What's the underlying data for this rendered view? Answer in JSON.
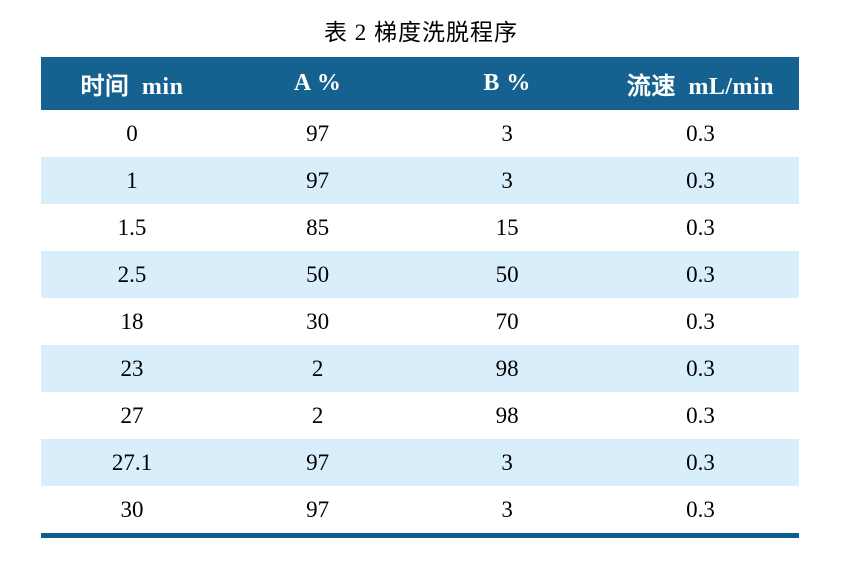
{
  "title": "表 2 梯度洗脱程序",
  "colors": {
    "header_bg": "#15618f",
    "header_text": "#ffffff",
    "row_bg": "#ffffff",
    "row_alt_bg": "#d8eefb",
    "bottom_rule": "#0d5d8d",
    "body_text": "#000000"
  },
  "table": {
    "headers": [
      "时间 min",
      "A %",
      "B %",
      "流速 mL/min"
    ],
    "rows": [
      [
        "0",
        "97",
        "3",
        "0.3"
      ],
      [
        "1",
        "97",
        "3",
        "0.3"
      ],
      [
        "1.5",
        "85",
        "15",
        "0.3"
      ],
      [
        "2.5",
        "50",
        "50",
        "0.3"
      ],
      [
        "18",
        "30",
        "70",
        "0.3"
      ],
      [
        "23",
        "2",
        "98",
        "0.3"
      ],
      [
        "27",
        "2",
        "98",
        "0.3"
      ],
      [
        "27.1",
        "97",
        "3",
        "0.3"
      ],
      [
        "30",
        "97",
        "3",
        "0.3"
      ]
    ]
  }
}
